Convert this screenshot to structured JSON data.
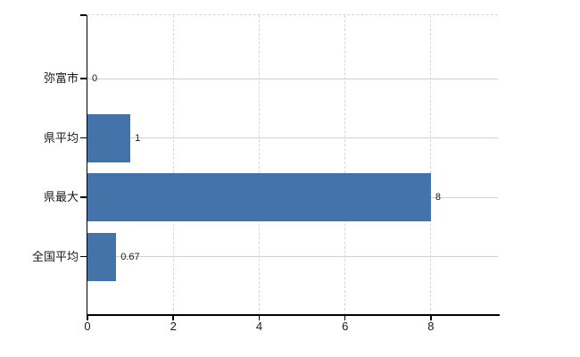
{
  "chart_data": {
    "type": "bar",
    "orientation": "horizontal",
    "title": "",
    "xlabel": "",
    "ylabel": "",
    "categories": [
      "弥富市",
      "県平均",
      "県最大",
      "全国平均"
    ],
    "values": [
      0,
      1,
      8,
      0.67
    ],
    "value_labels": [
      "0",
      "1",
      "8",
      "0.67"
    ],
    "x_ticks": [
      0,
      2,
      4,
      6,
      8
    ],
    "x_tick_labels": [
      "0",
      "2",
      "4",
      "6",
      "8"
    ],
    "xlim": [
      0,
      9.56
    ],
    "grid": true,
    "legend": "none",
    "colors": {
      "bar": "#4473aa",
      "h_grid": "#ccd4cb",
      "v_grid": "#d8d8d8",
      "axis": "#000000",
      "text": "#1a1a1a",
      "background": "#ffffff"
    }
  }
}
